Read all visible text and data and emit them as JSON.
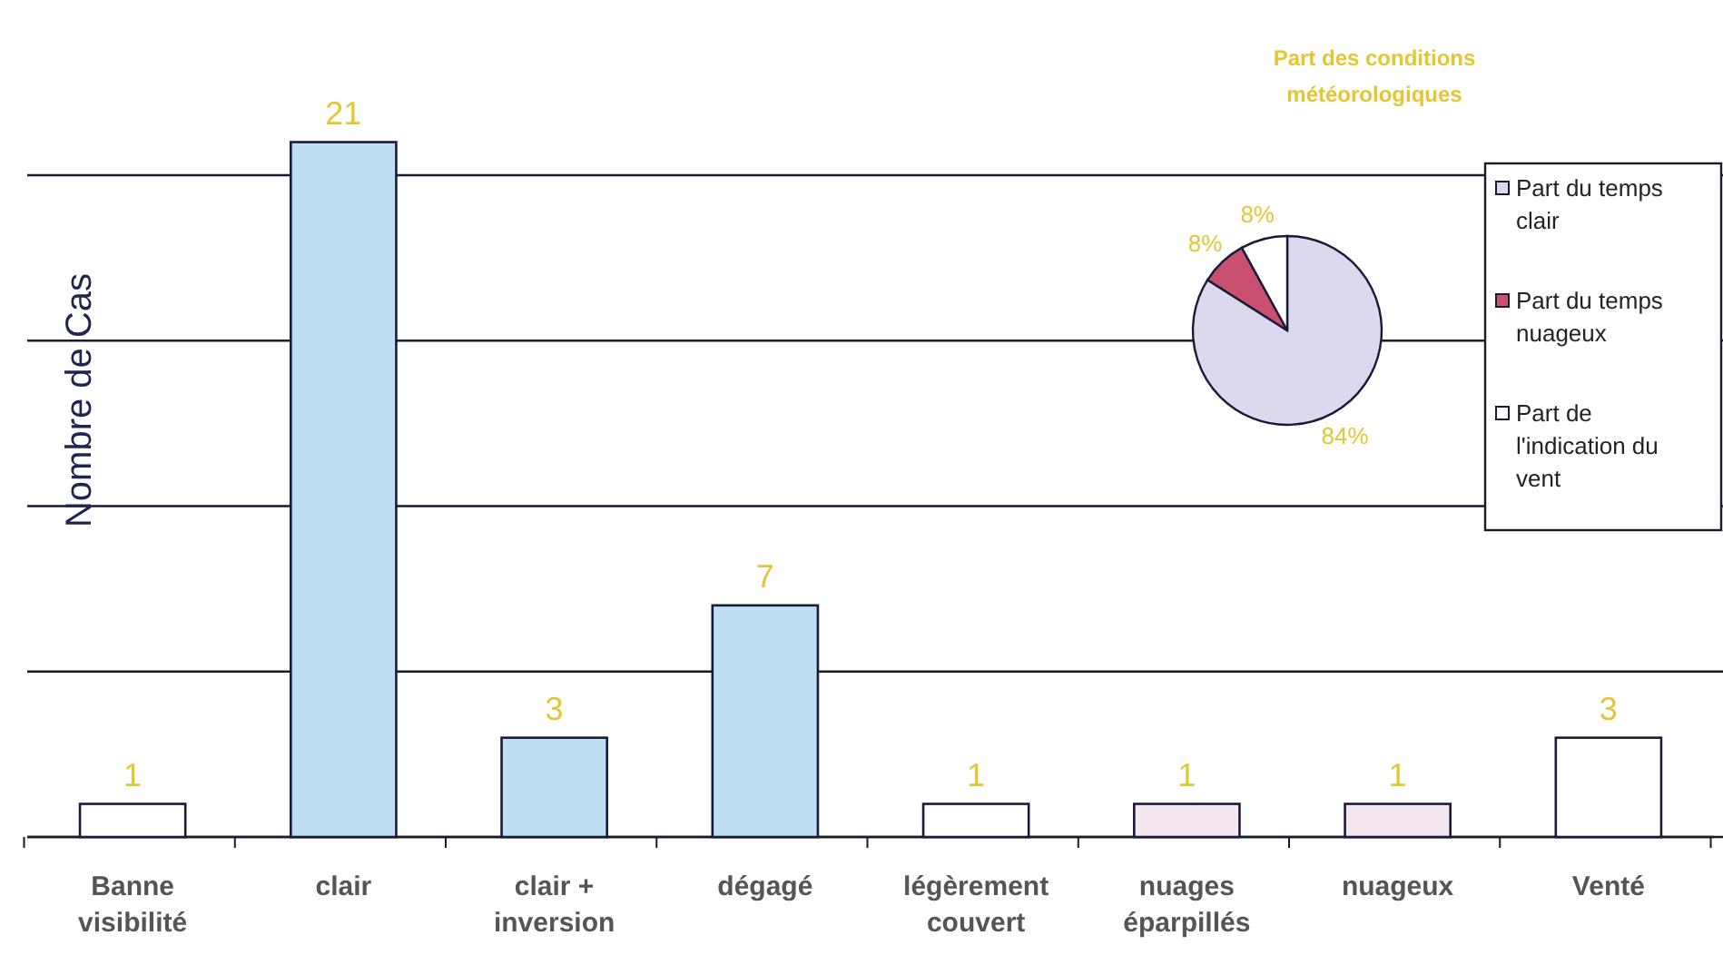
{
  "chart_data": [
    {
      "type": "bar",
      "ylabel": "Nombre de Cas",
      "categories": [
        "Banne visibilité",
        "clair",
        "clair + inversion",
        "dégagé",
        "légèrement couvert",
        "nuages éparpillés",
        "nuageux",
        "Venté"
      ],
      "values": [
        1,
        21,
        3,
        7,
        1,
        1,
        1,
        3
      ],
      "colors": [
        "#ffffff",
        "#bfe0f2",
        "#bfe0f2",
        "#bfe0f2",
        "#ffffff",
        "#f3e6ee",
        "#f3e6ee",
        "#ffffff"
      ],
      "yticks": [
        {
          "value": 0,
          "label": null
        },
        {
          "value": 5,
          "label": null
        },
        {
          "value": 10,
          "label": null
        },
        {
          "value": 15,
          "label": null
        },
        {
          "value": 20,
          "label": null
        }
      ],
      "grid": "y",
      "tick_labels": "x",
      "data_labels": true
    },
    {
      "type": "pie",
      "title": "Part des conditions météorologiques",
      "categories": [
        "Part du temps clair",
        "Part du temps nuageux",
        "Part de l'indication du vent"
      ],
      "values": [
        84,
        8,
        8
      ],
      "colors": [
        "#dcd8ee",
        "#c9506f",
        "#ffffff"
      ],
      "value_labels": [
        "84%",
        "8%",
        "8%"
      ],
      "legend": "right"
    }
  ]
}
